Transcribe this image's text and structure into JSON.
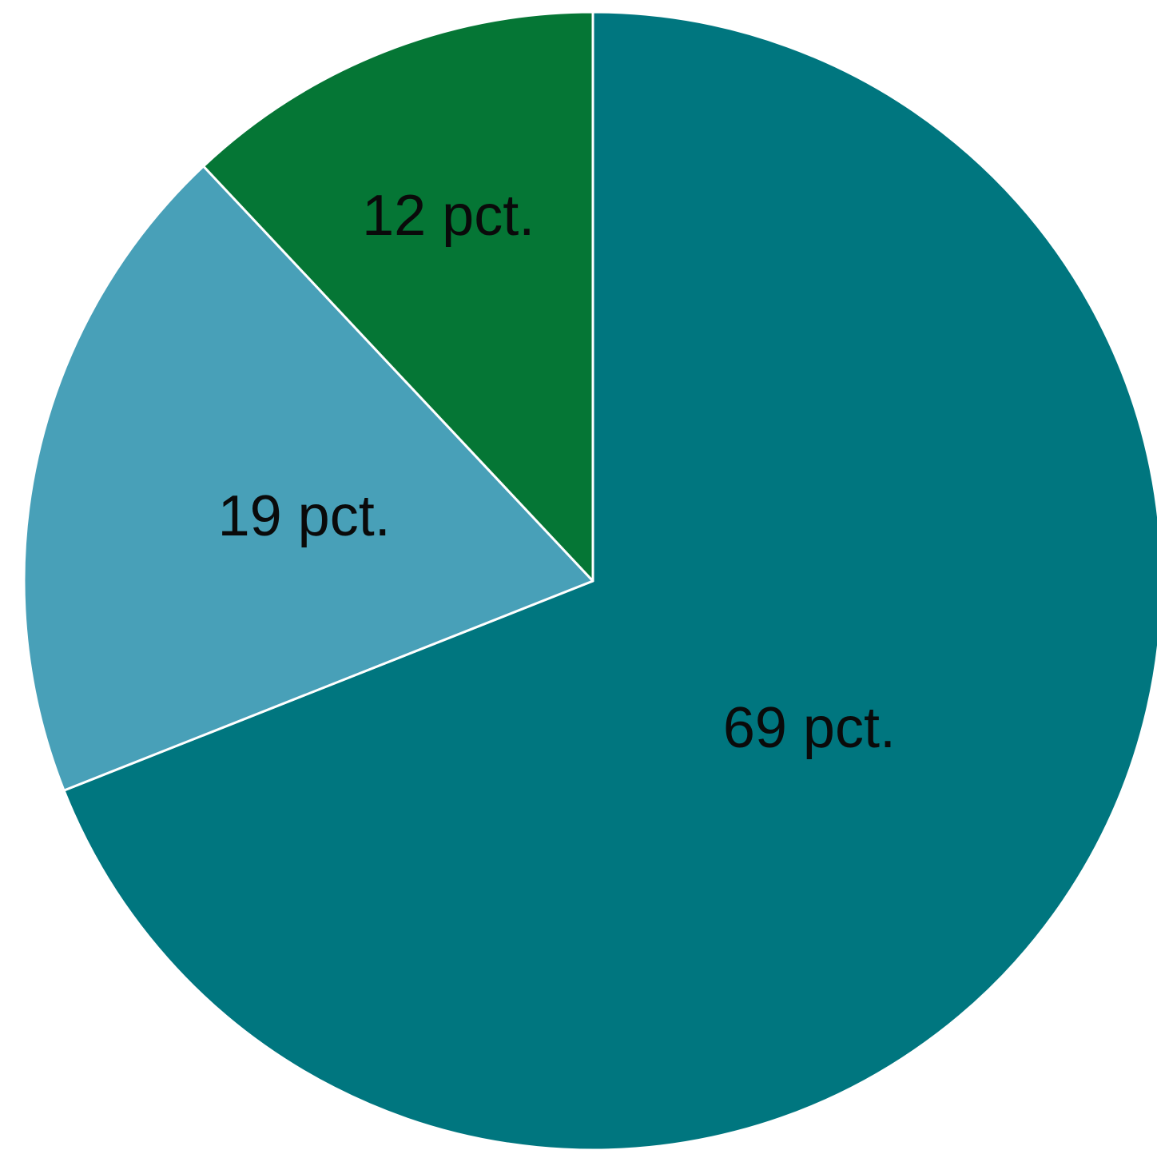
{
  "chart_data": {
    "type": "pie",
    "start_angle_deg": 0,
    "direction": "clockwise",
    "slices": [
      {
        "label": "69 pct.",
        "value": 69,
        "color": "#00767F"
      },
      {
        "label": "19 pct.",
        "value": 19,
        "color": "#48A0B8"
      },
      {
        "label": "12 pct.",
        "value": 12,
        "color": "#057635"
      }
    ]
  }
}
